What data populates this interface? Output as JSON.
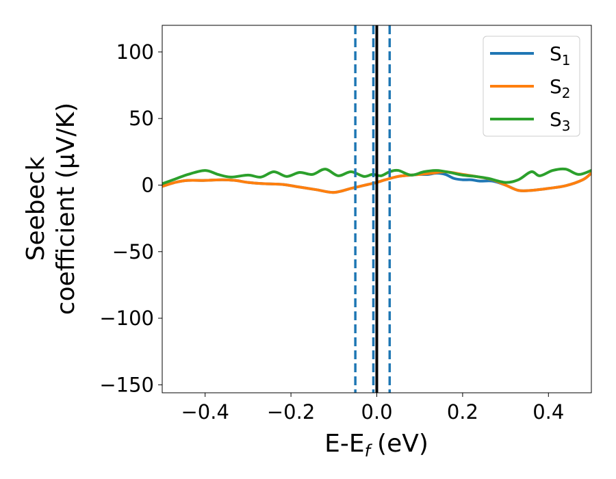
{
  "chart_data": {
    "type": "line",
    "xlabel": "E-E",
    "xlabel_sub": "f",
    "xlabel_unit": "(eV)",
    "ylabel_line1": "Seebeck",
    "ylabel_line2": "coefficient  (μV/K)",
    "xlim": [
      -0.5,
      0.5
    ],
    "ylim": [
      -156,
      120
    ],
    "x_ticks": [
      -0.4,
      -0.2,
      0.0,
      0.2,
      0.4
    ],
    "x_tick_labels": [
      "−0.4",
      "−0.2",
      "0.0",
      "0.2",
      "0.4"
    ],
    "y_ticks": [
      100,
      50,
      0,
      -50,
      -100,
      -150
    ],
    "y_tick_labels": [
      "100",
      "50",
      "0",
      "−50",
      "−100",
      "−150"
    ],
    "legend_position": "top-right",
    "grid": false,
    "vertical_lines": [
      {
        "x": -0.05,
        "style": "dashed",
        "color": "#1f77b4"
      },
      {
        "x": -0.008,
        "style": "dashed",
        "color": "#1f77b4"
      },
      {
        "x": 0.03,
        "style": "dashed",
        "color": "#1f77b4"
      },
      {
        "x": 0.0,
        "style": "solid",
        "color": "#000000"
      }
    ],
    "series": [
      {
        "name": "S",
        "sub": "1",
        "color": "#1f77b4",
        "x": [
          -0.5,
          -0.47,
          -0.44,
          -0.4,
          -0.36,
          -0.33,
          -0.3,
          -0.26,
          -0.22,
          -0.18,
          -0.14,
          -0.1,
          -0.06,
          -0.04,
          -0.02,
          0.0,
          0.02,
          0.05,
          0.08,
          0.1,
          0.12,
          0.14,
          0.16,
          0.18,
          0.2,
          0.22,
          0.24,
          0.27,
          0.3,
          0.33,
          0.36,
          0.4,
          0.44,
          0.48,
          0.5
        ],
        "y": [
          -1,
          2,
          3.5,
          3.5,
          4,
          3.5,
          2,
          1,
          0.5,
          -1.5,
          -3.5,
          -5.5,
          -2.5,
          -1,
          0.5,
          2,
          4,
          6.5,
          7.5,
          8,
          8,
          9,
          8,
          5,
          4,
          4,
          3,
          3,
          0,
          -4,
          -4,
          -2.5,
          -0.5,
          4,
          9
        ]
      },
      {
        "name": "S",
        "sub": "2",
        "color": "#ff7f0e",
        "x": [
          -0.5,
          -0.47,
          -0.44,
          -0.4,
          -0.36,
          -0.33,
          -0.3,
          -0.26,
          -0.22,
          -0.18,
          -0.14,
          -0.1,
          -0.06,
          -0.04,
          -0.02,
          0.0,
          0.02,
          0.05,
          0.08,
          0.1,
          0.13,
          0.16,
          0.2,
          0.24,
          0.27,
          0.3,
          0.33,
          0.36,
          0.4,
          0.44,
          0.48,
          0.5
        ],
        "y": [
          -1,
          2,
          3.5,
          3.5,
          4,
          3.5,
          2,
          1,
          0.5,
          -1.5,
          -3.5,
          -5.5,
          -2.5,
          -1,
          0.5,
          2,
          4,
          6.5,
          7.5,
          8,
          9,
          10,
          8,
          6,
          4,
          0,
          -4,
          -4,
          -2.5,
          -0.5,
          4,
          9
        ]
      },
      {
        "name": "S",
        "sub": "3",
        "color": "#2ca02c",
        "x": [
          -0.5,
          -0.47,
          -0.44,
          -0.4,
          -0.37,
          -0.34,
          -0.3,
          -0.27,
          -0.24,
          -0.21,
          -0.18,
          -0.15,
          -0.12,
          -0.09,
          -0.06,
          -0.03,
          -0.01,
          0.01,
          0.03,
          0.05,
          0.08,
          0.11,
          0.14,
          0.17,
          0.2,
          0.23,
          0.26,
          0.3,
          0.33,
          0.36,
          0.38,
          0.41,
          0.44,
          0.47,
          0.5
        ],
        "y": [
          1,
          4.5,
          8,
          11,
          8,
          6,
          7.5,
          6,
          10,
          6.5,
          9.5,
          8,
          12,
          7,
          10,
          6.5,
          8,
          7,
          10,
          11,
          7.5,
          10,
          11,
          9.5,
          7.5,
          6.5,
          5,
          2,
          4,
          10,
          7,
          11,
          12,
          8,
          11
        ]
      }
    ]
  }
}
